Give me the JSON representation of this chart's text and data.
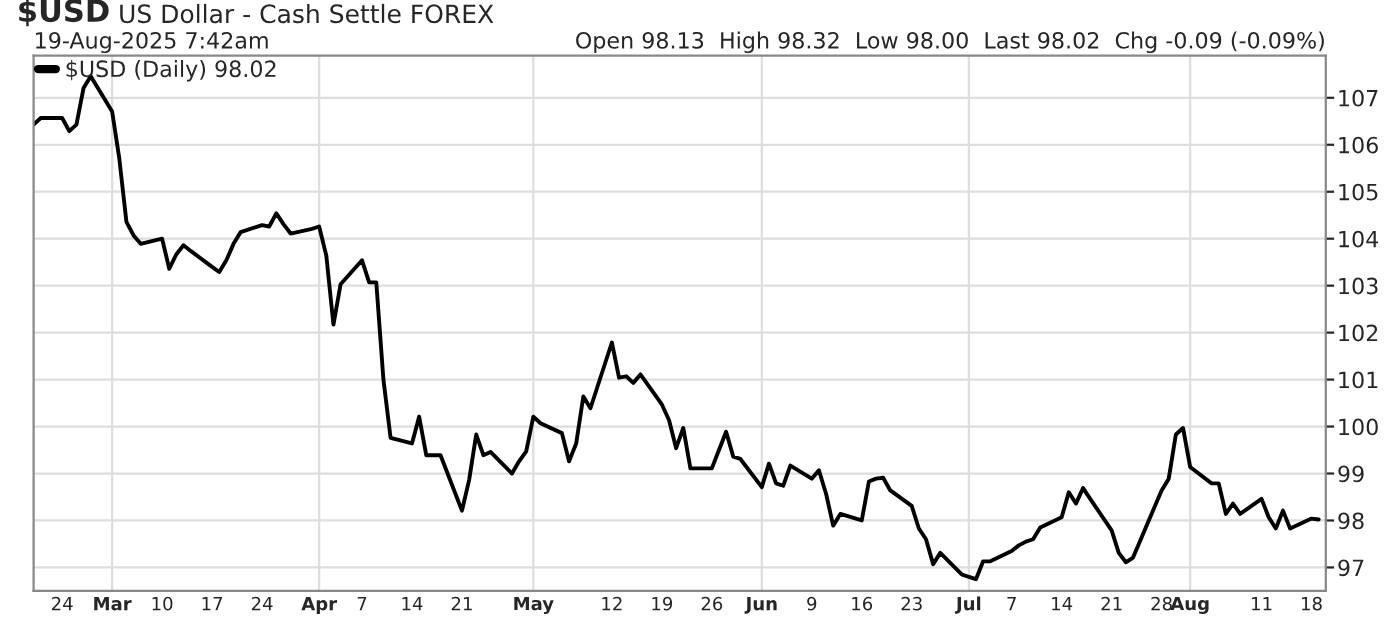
{
  "chart_data": {
    "type": "line",
    "title": "$USD",
    "subtitle": "US Dollar - Cash Settle FOREX",
    "annotations": [
      "19-Aug-2025 7:42am",
      "Open 98.13  High 98.32  Low 98.00  Last 98.02  Chg -0.09 (-0.09%)"
    ],
    "x": [
      "2025-02-20",
      "2025-02-21",
      "2025-02-24",
      "2025-02-25",
      "2025-02-26",
      "2025-02-27",
      "2025-02-28",
      "2025-03-03",
      "2025-03-04",
      "2025-03-05",
      "2025-03-06",
      "2025-03-07",
      "2025-03-10",
      "2025-03-11",
      "2025-03-12",
      "2025-03-13",
      "2025-03-14",
      "2025-03-17",
      "2025-03-18",
      "2025-03-19",
      "2025-03-20",
      "2025-03-21",
      "2025-03-24",
      "2025-03-25",
      "2025-03-26",
      "2025-03-27",
      "2025-03-28",
      "2025-03-31",
      "2025-04-01",
      "2025-04-02",
      "2025-04-03",
      "2025-04-04",
      "2025-04-07",
      "2025-04-08",
      "2025-04-09",
      "2025-04-10",
      "2025-04-11",
      "2025-04-14",
      "2025-04-15",
      "2025-04-16",
      "2025-04-17",
      "2025-04-18",
      "2025-04-21",
      "2025-04-22",
      "2025-04-23",
      "2025-04-24",
      "2025-04-25",
      "2025-04-28",
      "2025-04-29",
      "2025-04-30",
      "2025-05-01",
      "2025-05-02",
      "2025-05-05",
      "2025-05-06",
      "2025-05-07",
      "2025-05-08",
      "2025-05-09",
      "2025-05-12",
      "2025-05-13",
      "2025-05-14",
      "2025-05-15",
      "2025-05-16",
      "2025-05-19",
      "2025-05-20",
      "2025-05-21",
      "2025-05-22",
      "2025-05-23",
      "2025-05-26",
      "2025-05-27",
      "2025-05-28",
      "2025-05-29",
      "2025-05-30",
      "2025-06-02",
      "2025-06-03",
      "2025-06-04",
      "2025-06-05",
      "2025-06-06",
      "2025-06-09",
      "2025-06-10",
      "2025-06-11",
      "2025-06-12",
      "2025-06-13",
      "2025-06-16",
      "2025-06-17",
      "2025-06-18",
      "2025-06-19",
      "2025-06-20",
      "2025-06-23",
      "2025-06-24",
      "2025-06-25",
      "2025-06-26",
      "2025-06-27",
      "2025-06-30",
      "2025-07-01",
      "2025-07-02",
      "2025-07-03",
      "2025-07-04",
      "2025-07-07",
      "2025-07-08",
      "2025-07-09",
      "2025-07-10",
      "2025-07-11",
      "2025-07-14",
      "2025-07-15",
      "2025-07-16",
      "2025-07-17",
      "2025-07-18",
      "2025-07-21",
      "2025-07-22",
      "2025-07-23",
      "2025-07-24",
      "2025-07-25",
      "2025-07-28",
      "2025-07-29",
      "2025-07-30",
      "2025-07-31",
      "2025-08-01",
      "2025-08-04",
      "2025-08-05",
      "2025-08-06",
      "2025-08-07",
      "2025-08-08",
      "2025-08-11",
      "2025-08-12",
      "2025-08-13",
      "2025-08-14",
      "2025-08-15",
      "2025-08-18",
      "2025-08-19"
    ],
    "series": [
      {
        "name": "$USD (Daily) 98.02",
        "color": "#000000",
        "values": [
          106.43,
          106.57,
          106.57,
          106.29,
          106.43,
          107.21,
          107.46,
          106.71,
          105.71,
          104.36,
          104.07,
          103.89,
          104.0,
          103.36,
          103.67,
          103.86,
          103.74,
          103.4,
          103.29,
          103.54,
          103.89,
          104.14,
          104.29,
          104.26,
          104.54,
          104.31,
          104.11,
          104.21,
          104.26,
          103.64,
          102.17,
          103.03,
          103.54,
          103.07,
          103.07,
          101.0,
          99.76,
          99.64,
          100.21,
          99.39,
          99.39,
          99.39,
          98.21,
          98.86,
          99.83,
          99.39,
          99.46,
          99.0,
          99.26,
          99.47,
          100.21,
          100.07,
          99.86,
          99.26,
          99.64,
          100.64,
          100.39,
          101.79,
          101.04,
          101.07,
          100.93,
          101.11,
          100.47,
          100.14,
          99.54,
          99.97,
          99.11,
          99.11,
          99.5,
          99.89,
          99.36,
          99.31,
          98.71,
          99.21,
          98.79,
          98.74,
          99.17,
          98.89,
          99.07,
          98.57,
          97.89,
          98.14,
          98.0,
          98.83,
          98.89,
          98.91,
          98.64,
          98.31,
          97.83,
          97.6,
          97.07,
          97.31,
          96.85,
          96.8,
          96.75,
          97.13,
          97.13,
          97.35,
          97.47,
          97.55,
          97.6,
          97.85,
          98.07,
          98.6,
          98.36,
          98.69,
          98.46,
          97.79,
          97.31,
          97.11,
          97.21,
          97.57,
          98.64,
          98.89,
          99.83,
          99.97,
          99.14,
          98.79,
          98.79,
          98.14,
          98.36,
          98.14,
          98.46,
          98.07,
          97.83,
          98.21,
          97.83,
          98.04,
          98.02
        ]
      }
    ],
    "xlim": [
      "2025-02-20",
      "2025-08-20"
    ],
    "xticks": [
      {
        "value": "2025-02-24",
        "label": "24"
      },
      {
        "value": "2025-03-03",
        "label": "Mar"
      },
      {
        "value": "2025-03-10",
        "label": "10"
      },
      {
        "value": "2025-03-17",
        "label": "17"
      },
      {
        "value": "2025-03-24",
        "label": "24"
      },
      {
        "value": "2025-04-01",
        "label": "Apr"
      },
      {
        "value": "2025-04-07",
        "label": "7"
      },
      {
        "value": "2025-04-14",
        "label": "14"
      },
      {
        "value": "2025-04-21",
        "label": "21"
      },
      {
        "value": "2025-05-01",
        "label": "May"
      },
      {
        "value": "2025-05-12",
        "label": "12"
      },
      {
        "value": "2025-05-19",
        "label": "19"
      },
      {
        "value": "2025-05-26",
        "label": "26"
      },
      {
        "value": "2025-06-02",
        "label": "Jun"
      },
      {
        "value": "2025-06-09",
        "label": "9"
      },
      {
        "value": "2025-06-16",
        "label": "16"
      },
      {
        "value": "2025-06-23",
        "label": "23"
      },
      {
        "value": "2025-07-01",
        "label": "Jul"
      },
      {
        "value": "2025-07-07",
        "label": "7"
      },
      {
        "value": "2025-07-14",
        "label": "14"
      },
      {
        "value": "2025-07-21",
        "label": "21"
      },
      {
        "value": "2025-07-28",
        "label": "28"
      },
      {
        "value": "2025-08-01",
        "label": "Aug"
      },
      {
        "value": "2025-08-11",
        "label": "11"
      },
      {
        "value": "2025-08-18",
        "label": "18"
      }
    ],
    "ylim": [
      96.5,
      107.9
    ],
    "yticks": [
      97,
      98,
      99,
      100,
      101,
      102,
      103,
      104,
      105,
      106,
      107
    ],
    "grid": true,
    "legend": "top left",
    "marker": "none",
    "line_style": "solid"
  }
}
